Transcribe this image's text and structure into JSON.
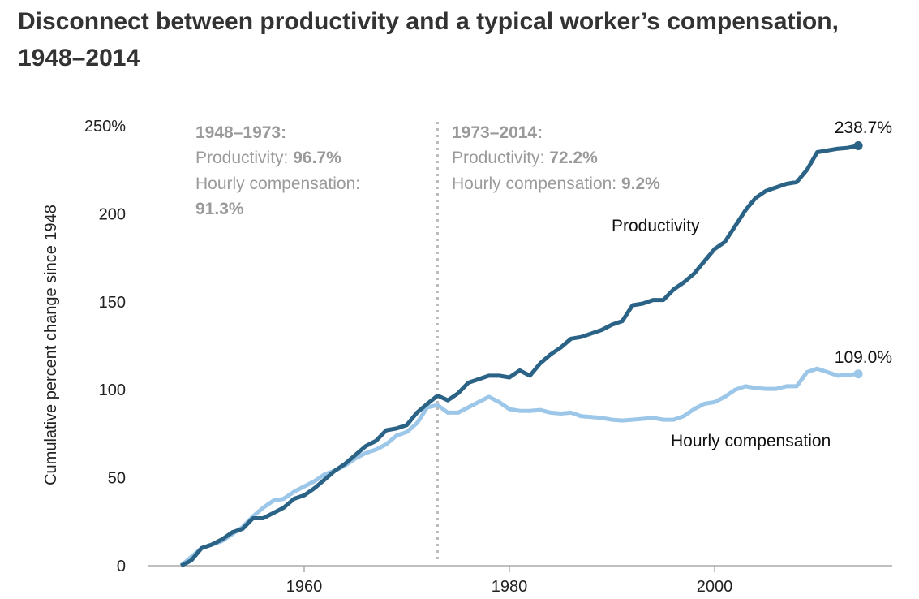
{
  "title": "Disconnect between productivity and a typical worker’s compensation, 1948–2014",
  "colors": {
    "productivity": "#2b6387",
    "compensation": "#9cc7e8",
    "annotation": "#9a9a9a",
    "divider": "#bbbbbb",
    "axis": "#aaaaaa"
  },
  "annotations": {
    "left": {
      "heading": "1948–1973:",
      "prod_label": "Productivity: ",
      "prod_value": "96.7%",
      "comp_label": "Hourly compensation:",
      "comp_value": "91.3%"
    },
    "right": {
      "heading": "1973–2014:",
      "prod_label": "Productivity: ",
      "prod_value": "72.2%",
      "comp_label": "Hourly compensation: ",
      "comp_value": "9.2%"
    }
  },
  "chart_data": {
    "type": "line",
    "title": "Disconnect between productivity and a typical worker’s compensation, 1948–2014",
    "xlabel": "",
    "ylabel": "Cumulative percent change since 1948",
    "xlim": [
      1945,
      2018
    ],
    "ylim": [
      0,
      250
    ],
    "x_ticks": [
      "1960",
      "1980",
      "2000"
    ],
    "x_tick_values": [
      1960,
      1980,
      2000
    ],
    "y_ticks": [
      "0",
      "50",
      "100",
      "150",
      "200",
      "250%"
    ],
    "y_tick_values": [
      0,
      50,
      100,
      150,
      200,
      250
    ],
    "grid": false,
    "divider_year": 1973,
    "x": [
      1948,
      1949,
      1950,
      1951,
      1952,
      1953,
      1954,
      1955,
      1956,
      1957,
      1958,
      1959,
      1960,
      1961,
      1962,
      1963,
      1964,
      1965,
      1966,
      1967,
      1968,
      1969,
      1970,
      1971,
      1972,
      1973,
      1974,
      1975,
      1976,
      1977,
      1978,
      1979,
      1980,
      1981,
      1982,
      1983,
      1984,
      1985,
      1986,
      1987,
      1988,
      1989,
      1990,
      1991,
      1992,
      1993,
      1994,
      1995,
      1996,
      1997,
      1998,
      1999,
      2000,
      2001,
      2002,
      2003,
      2004,
      2005,
      2006,
      2007,
      2008,
      2009,
      2010,
      2011,
      2012,
      2013,
      2014
    ],
    "series": [
      {
        "name": "Productivity",
        "end_label": "238.7%",
        "values": [
          0,
          3,
          10,
          12,
          15,
          19,
          21,
          27,
          27,
          30,
          33,
          38,
          40,
          44,
          49,
          54,
          58,
          63,
          68,
          71,
          77,
          78,
          80,
          87,
          92,
          96.7,
          94,
          98,
          104,
          106,
          108,
          108,
          107,
          111,
          108,
          115,
          120,
          124,
          129,
          130,
          132,
          134,
          137,
          139,
          148,
          149,
          151,
          151,
          157,
          161,
          166,
          173,
          180,
          184,
          193,
          202,
          209,
          213,
          215,
          217,
          218,
          225,
          235,
          236,
          237,
          237.5,
          238.7
        ]
      },
      {
        "name": "Hourly compensation",
        "end_label": "109.0%",
        "values": [
          0,
          5,
          10,
          12,
          14,
          18,
          22,
          28,
          33,
          37,
          38,
          42,
          45,
          48,
          52,
          54,
          57,
          61,
          64,
          66,
          69,
          74,
          76,
          81,
          90,
          91.3,
          87,
          87,
          90,
          93,
          96,
          93,
          89,
          88,
          88,
          88.5,
          87,
          86.5,
          87,
          85,
          84.5,
          84,
          83,
          82.5,
          83,
          83.5,
          84,
          83,
          83,
          85,
          89,
          92,
          93,
          96,
          100,
          102,
          101,
          100.5,
          100.5,
          102,
          102,
          110,
          112,
          110,
          108,
          108.5,
          109
        ]
      }
    ]
  }
}
